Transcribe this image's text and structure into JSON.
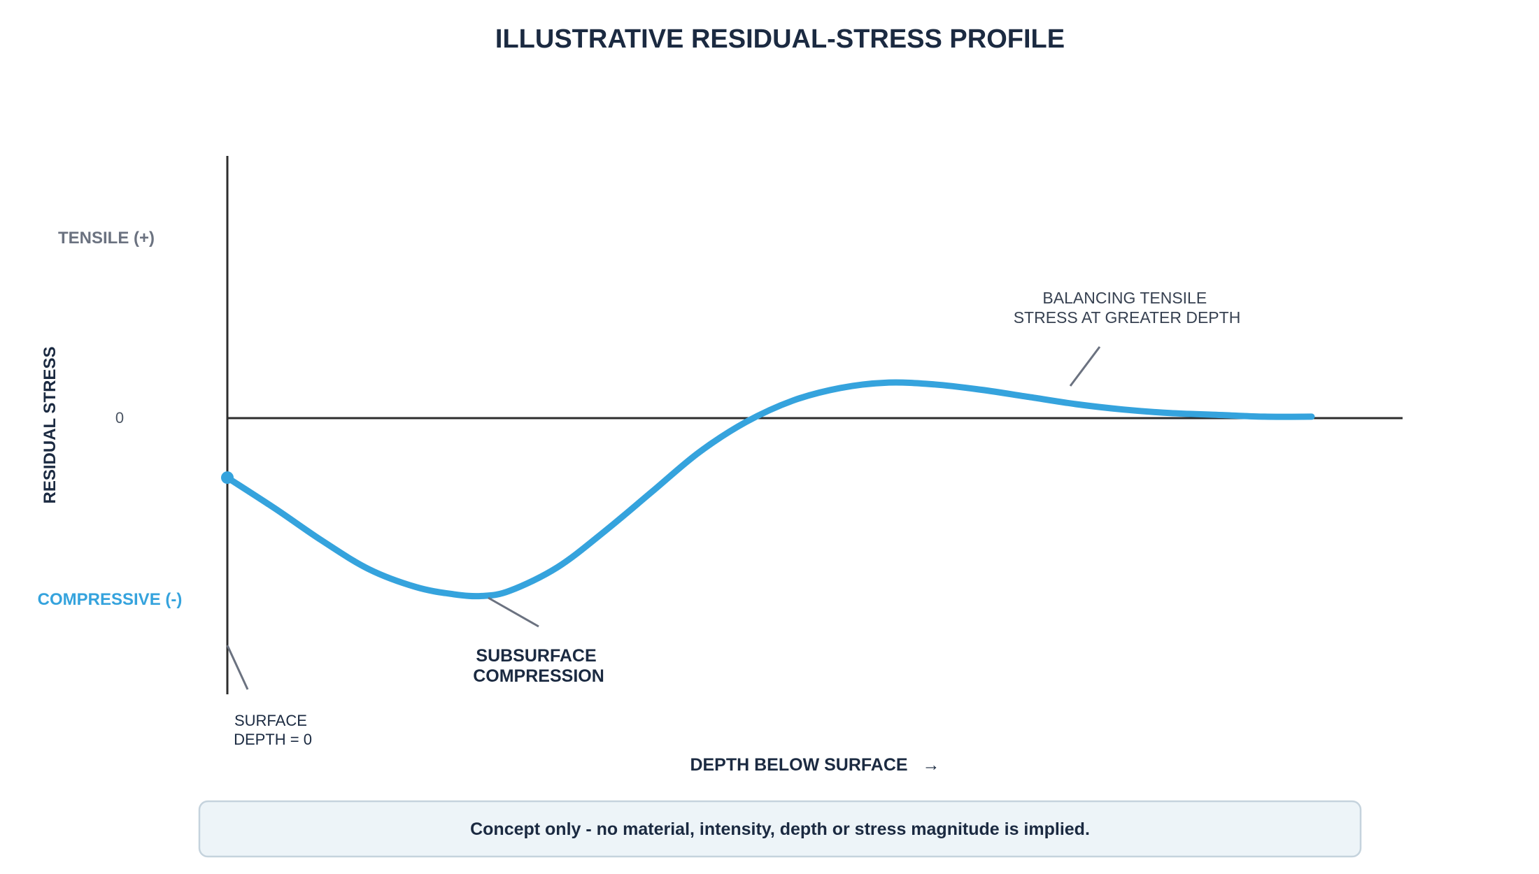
{
  "chart_data": {
    "type": "line",
    "title": "ILLUSTRATIVE RESIDUAL-STRESS PROFILE",
    "ylabel": "RESIDUAL STRESS",
    "xlabel": "DEPTH BELOW SURFACE",
    "xlabel_arrow": "→",
    "y_ticks": {
      "tensile": "TENSILE (+)",
      "zero": "0",
      "compressive": "COMPRESSIVE (-)"
    },
    "x_range": [
      0,
      1.15
    ],
    "y_range": [
      -1.0,
      1.0
    ],
    "grid": false,
    "legend": "none",
    "colors": {
      "curve": "#35a3dd",
      "axis": "#2d2d2d",
      "leader": "#6b7280",
      "title": "#1b2a41",
      "note_bg": "#edf4f8",
      "note_border": "#c5d3dd"
    },
    "series": [
      {
        "x": [
          0,
          0.05,
          0.1,
          0.15,
          0.2,
          0.24,
          0.27,
          0.3,
          0.35,
          0.4,
          0.45,
          0.5,
          0.55,
          0.6,
          0.65,
          0.7,
          0.75,
          0.8,
          0.85,
          0.9,
          0.95,
          1.0,
          1.05,
          1.1,
          1.15
        ],
        "y": [
          -0.33,
          -0.5,
          -0.68,
          -0.84,
          -0.94,
          -0.98,
          -0.99,
          -0.96,
          -0.83,
          -0.63,
          -0.41,
          -0.19,
          -0.02,
          0.1,
          0.17,
          0.2,
          0.19,
          0.16,
          0.12,
          0.08,
          0.05,
          0.03,
          0.02,
          0.01,
          0.01
        ]
      }
    ],
    "annotations": {
      "surface": [
        "SURFACE",
        "DEPTH = 0"
      ],
      "subsurface": [
        "SUBSURFACE",
        "COMPRESSION"
      ],
      "balancing": [
        "BALANCING TENSILE",
        "STRESS AT GREATER DEPTH"
      ]
    },
    "note": "Concept only - no material, intensity, depth or stress magnitude is implied."
  }
}
